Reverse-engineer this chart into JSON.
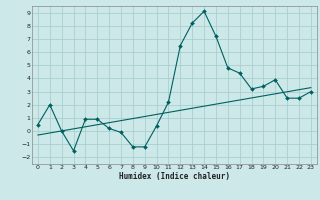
{
  "xlabel": "Humidex (Indice chaleur)",
  "background_color": "#cce8e8",
  "grid_color": "#aacece",
  "line_color": "#006060",
  "xlim": [
    -0.5,
    23.5
  ],
  "ylim": [
    -2.5,
    9.5
  ],
  "xticks": [
    0,
    1,
    2,
    3,
    4,
    5,
    6,
    7,
    8,
    9,
    10,
    11,
    12,
    13,
    14,
    15,
    16,
    17,
    18,
    19,
    20,
    21,
    22,
    23
  ],
  "yticks": [
    -2,
    -1,
    0,
    1,
    2,
    3,
    4,
    5,
    6,
    7,
    8,
    9
  ],
  "curve_x": [
    0,
    1,
    2,
    3,
    4,
    5,
    6,
    7,
    8,
    9,
    10,
    11,
    12,
    13,
    14,
    15,
    16,
    17,
    18,
    19,
    20,
    21,
    22,
    23
  ],
  "curve_y": [
    0.5,
    2.0,
    0.0,
    -1.5,
    0.9,
    0.9,
    0.2,
    -0.1,
    -1.2,
    -1.2,
    0.4,
    2.2,
    6.5,
    8.2,
    9.1,
    7.2,
    4.8,
    4.4,
    3.2,
    3.4,
    3.9,
    2.5,
    2.5,
    3.0
  ],
  "trend_x": [
    0,
    23
  ],
  "trend_y": [
    -0.3,
    3.3
  ]
}
